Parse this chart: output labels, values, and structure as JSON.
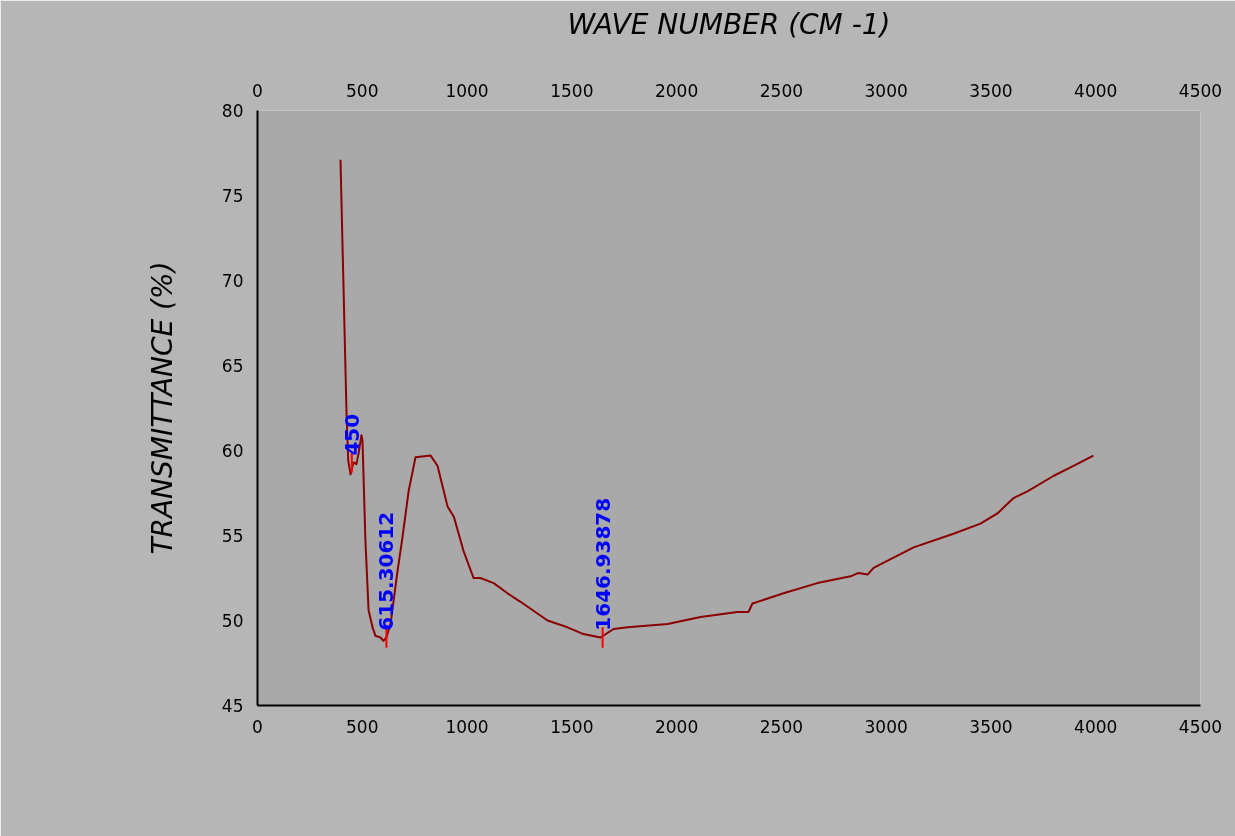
{
  "chart_data": {
    "type": "line",
    "xlabel": "WAVE NUMBER (CM -1)",
    "ylabel": "TRANSMITTANCE (%)",
    "xlim": [
      0,
      4500
    ],
    "xticks": [
      0,
      500,
      1000,
      1500,
      2000,
      2500,
      3000,
      3500,
      4000,
      4500
    ],
    "x2lim": [
      0,
      4500
    ],
    "x2ticks": [
      0,
      500,
      1000,
      1500,
      2000,
      2500,
      3000,
      3500,
      4000,
      4500
    ],
    "ylim": [
      45,
      80
    ],
    "yticks": [
      45,
      50,
      55,
      60,
      65,
      70,
      75,
      80
    ],
    "grid": false,
    "marker": "none",
    "line_style": "solid",
    "series": [
      {
        "color": "#8b0000",
        "x": [
          396,
          425,
          433,
          444,
          458,
          472,
          482,
          496,
          501,
          515,
          530,
          549,
          563,
          587,
          601,
          615,
          635,
          667,
          692,
          721,
          754,
          826,
          859,
          907,
          937,
          983,
          1031,
          1064,
          1127,
          1193,
          1255,
          1384,
          1479,
          1556,
          1637,
          1699,
          1766,
          1957,
          2114,
          2290,
          2343,
          2362,
          2510,
          2672,
          2830,
          2868,
          2911,
          2940,
          3068,
          3131,
          3321,
          3450,
          3531,
          3608,
          3674,
          3798,
          3894,
          3989
        ],
        "values": [
          77.1,
          62.1,
          59.4,
          58.6,
          59.3,
          59.2,
          59.8,
          60.9,
          60.6,
          54.7,
          50.6,
          49.6,
          49.1,
          49.0,
          48.8,
          49.0,
          49.8,
          52.8,
          54.9,
          57.6,
          59.6,
          59.7,
          59.1,
          56.7,
          56.1,
          54.1,
          52.5,
          52.5,
          52.2,
          51.6,
          51.1,
          50.0,
          49.6,
          49.2,
          49.0,
          49.5,
          49.6,
          49.8,
          50.2,
          50.5,
          50.5,
          51.0,
          51.6,
          52.2,
          52.6,
          52.8,
          52.7,
          53.1,
          53.9,
          54.3,
          55.1,
          55.7,
          56.3,
          57.2,
          57.6,
          58.5,
          59.1,
          59.7
        ]
      }
    ],
    "annotations": [
      {
        "text": "450",
        "x": 450,
        "y": 59.3
      },
      {
        "text": "615.30612",
        "x": 615.30612,
        "y": 49.0
      },
      {
        "text": "1646.93878",
        "x": 1646.93878,
        "y": 49.0
      }
    ]
  }
}
